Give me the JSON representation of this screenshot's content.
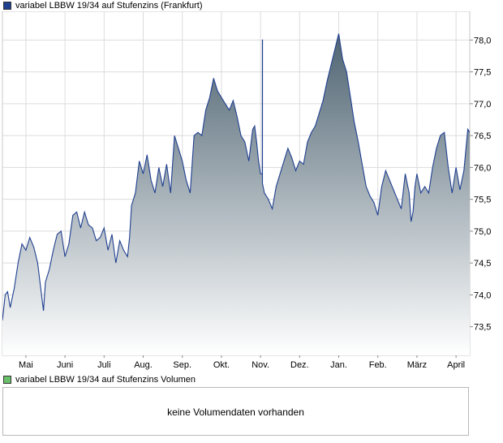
{
  "price_legend": {
    "label": "variabel LBBW 19/34 auf Stufenzins (Frankfurt)",
    "color": "#1f3f8f"
  },
  "volume_legend": {
    "label": "variabel LBBW 19/34 auf Stufenzins Volumen",
    "color": "#6abf6a"
  },
  "volume_panel": {
    "message": "keine Volumendaten vorhanden"
  },
  "chart_data": {
    "type": "area",
    "title": "variabel LBBW 19/34 auf Stufenzins (Frankfurt)",
    "xlabel": "",
    "ylabel": "",
    "ylim": [
      73.05,
      78.45
    ],
    "yticks": [
      "73,5",
      "74,0",
      "74,5",
      "75,0",
      "75,5",
      "76,0",
      "76,5",
      "77,0",
      "77,5",
      "78,0"
    ],
    "ytick_values": [
      73.5,
      74.0,
      74.5,
      75.0,
      75.5,
      76.0,
      76.5,
      77.0,
      77.5,
      78.0
    ],
    "x_tick_labels": [
      "Mai",
      "Juni",
      "Juli",
      "Aug.",
      "Sep.",
      "Okt.",
      "Nov.",
      "Dez.",
      "Jan.",
      "Feb.",
      "März",
      "April"
    ],
    "x_tick_positions": [
      1,
      2,
      3,
      4,
      5,
      6,
      7,
      8,
      9,
      10,
      11,
      12
    ],
    "xlim": [
      0.4,
      12.35
    ],
    "grid": true,
    "legend": "top-left",
    "colors": {
      "line": "#1f3f8f",
      "fill_top": "#4f6472",
      "fill_bottom": "#ffffff",
      "grid": "#dcdcdc"
    },
    "series": [
      {
        "name": "variabel LBBW 19/34 auf Stufenzins (Frankfurt)",
        "x": [
          0.4,
          0.47,
          0.53,
          0.6,
          0.7,
          0.8,
          0.9,
          1.0,
          1.1,
          1.2,
          1.3,
          1.4,
          1.45,
          1.5,
          1.6,
          1.7,
          1.8,
          1.9,
          2.0,
          2.1,
          2.2,
          2.3,
          2.4,
          2.5,
          2.6,
          2.7,
          2.8,
          2.9,
          3.0,
          3.1,
          3.2,
          3.3,
          3.4,
          3.5,
          3.6,
          3.65,
          3.7,
          3.8,
          3.9,
          4.0,
          4.1,
          4.2,
          4.3,
          4.4,
          4.5,
          4.6,
          4.7,
          4.8,
          4.9,
          5.0,
          5.1,
          5.2,
          5.3,
          5.4,
          5.5,
          5.6,
          5.7,
          5.8,
          5.9,
          6.0,
          6.1,
          6.2,
          6.3,
          6.4,
          6.5,
          6.6,
          6.7,
          6.8,
          6.85,
          6.9,
          6.95,
          7.0,
          7.05,
          7.1,
          7.2,
          7.3,
          7.4,
          7.5,
          7.6,
          7.7,
          7.8,
          7.9,
          8.0,
          8.1,
          8.2,
          8.3,
          8.4,
          8.5,
          8.6,
          8.7,
          8.8,
          8.9,
          9.0,
          9.1,
          9.2,
          9.3,
          9.4,
          9.5,
          9.6,
          9.7,
          9.8,
          9.9,
          10.0,
          10.1,
          10.2,
          10.3,
          10.4,
          10.5,
          10.6,
          10.7,
          10.8,
          10.85,
          10.9,
          10.95,
          11.0,
          11.1,
          11.2,
          11.3,
          11.4,
          11.5,
          11.6,
          11.7,
          11.8,
          11.9,
          12.0,
          12.1,
          12.2,
          12.3,
          12.35
        ],
        "values": [
          73.6,
          74.0,
          74.05,
          73.8,
          74.1,
          74.5,
          74.8,
          74.7,
          74.9,
          74.75,
          74.5,
          74.0,
          73.75,
          74.2,
          74.4,
          74.7,
          74.95,
          75.0,
          74.6,
          74.8,
          75.25,
          75.3,
          75.05,
          75.3,
          75.1,
          75.05,
          74.85,
          74.9,
          75.05,
          74.7,
          74.95,
          74.5,
          74.85,
          74.7,
          74.6,
          74.9,
          75.4,
          75.6,
          76.1,
          75.9,
          76.2,
          75.8,
          75.6,
          76.0,
          75.7,
          76.05,
          75.6,
          76.5,
          76.3,
          76.1,
          75.8,
          75.6,
          76.5,
          76.55,
          76.5,
          76.9,
          77.1,
          77.4,
          77.2,
          77.1,
          77.0,
          76.9,
          77.05,
          76.8,
          76.5,
          76.4,
          76.1,
          76.6,
          76.65,
          76.4,
          76.1,
          75.9,
          75.75,
          75.6,
          75.5,
          75.35,
          75.7,
          75.9,
          76.1,
          76.3,
          76.15,
          75.95,
          76.1,
          76.05,
          76.4,
          76.55,
          76.65,
          76.85,
          77.05,
          77.35,
          77.6,
          77.85,
          78.1,
          77.7,
          77.5,
          77.1,
          76.7,
          76.4,
          76.05,
          75.7,
          75.55,
          75.45,
          75.25,
          75.7,
          75.95,
          75.8,
          75.65,
          75.5,
          75.35,
          75.9,
          75.6,
          75.15,
          75.3,
          75.7,
          75.9,
          75.6,
          75.7,
          75.6,
          76.0,
          76.3,
          76.5,
          76.55,
          76.0,
          75.6,
          76.0,
          75.65,
          75.95,
          76.6,
          76.55
        ],
        "spikes": [
          {
            "x": 7.05,
            "value": 78.0
          }
        ]
      }
    ]
  }
}
